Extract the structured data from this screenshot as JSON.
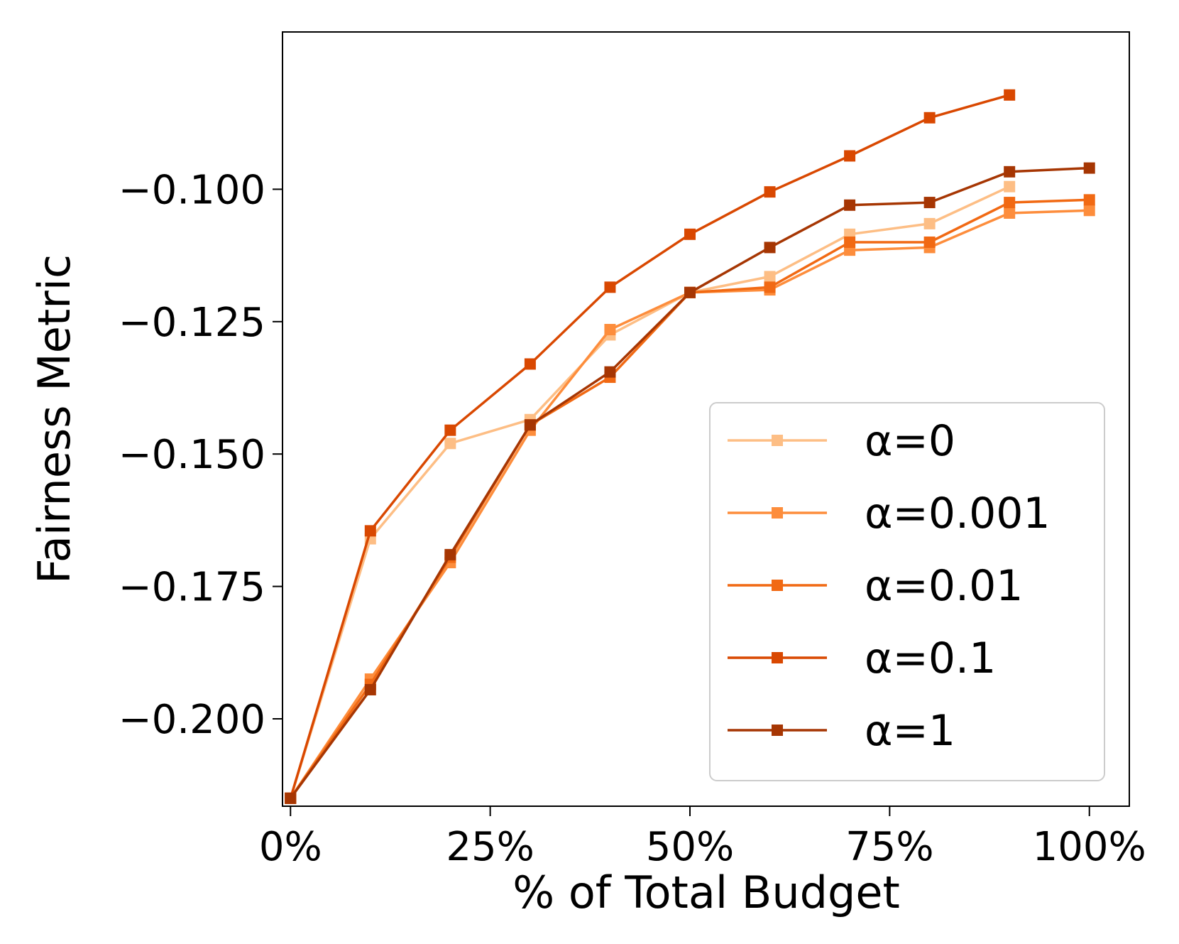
{
  "chart_data": {
    "type": "line",
    "title": "",
    "xlabel": "% of Total Budget",
    "ylabel": "Fairness Metric",
    "xlim": [
      -0.01,
      1.05
    ],
    "ylim": [
      -0.2165,
      -0.0703
    ],
    "x_ticks": [
      0,
      0.25,
      0.5,
      0.75,
      1.0
    ],
    "x_tick_labels": [
      "0%",
      "25%",
      "50%",
      "75%",
      "100%"
    ],
    "y_ticks": [
      -0.2,
      -0.175,
      -0.15,
      -0.125,
      -0.1
    ],
    "y_tick_labels": [
      "−0.200",
      "−0.175",
      "−0.150",
      "−0.125",
      "−0.100"
    ],
    "grid": false,
    "legend_position": "lower-right",
    "marker": "square",
    "series": [
      {
        "name": "α=0",
        "color": "#fdbe85",
        "x": [
          0,
          0.1,
          0.2,
          0.3,
          0.4,
          0.5,
          0.6,
          0.7,
          0.8,
          0.9,
          1.0
        ],
        "y": [
          -0.215,
          -0.166,
          -0.148,
          -0.1435,
          -0.1275,
          -0.1195,
          -0.1165,
          -0.1085,
          -0.1065,
          -0.0995,
          null
        ]
      },
      {
        "name": "α=0.001",
        "color": "#fd8d3c",
        "x": [
          0,
          0.1,
          0.2,
          0.3,
          0.4,
          0.5,
          0.6,
          0.7,
          0.8,
          0.9,
          1.0
        ],
        "y": [
          -0.215,
          -0.1925,
          -0.1705,
          -0.1455,
          -0.1265,
          -0.1195,
          -0.119,
          -0.1115,
          -0.111,
          -0.1045,
          -0.104
        ]
      },
      {
        "name": "α=0.01",
        "color": "#f16913",
        "x": [
          0,
          0.1,
          0.2,
          0.3,
          0.4,
          0.5,
          0.6,
          0.7,
          0.8,
          0.9,
          1.0
        ],
        "y": [
          -0.215,
          -0.1935,
          -0.1695,
          -0.1445,
          -0.1355,
          -0.1195,
          -0.1185,
          -0.11,
          -0.11,
          -0.1025,
          -0.102
        ]
      },
      {
        "name": "α=0.1",
        "color": "#d94801",
        "x": [
          0,
          0.1,
          0.2,
          0.3,
          0.4,
          0.5,
          0.6,
          0.7,
          0.8,
          0.9
        ],
        "y": [
          -0.215,
          -0.1645,
          -0.1455,
          -0.133,
          -0.1185,
          -0.1085,
          -0.1005,
          -0.0937,
          -0.0865,
          -0.0822
        ]
      },
      {
        "name": "α=1",
        "color": "#a63603",
        "x": [
          0,
          0.1,
          0.2,
          0.3,
          0.4,
          0.5,
          0.6,
          0.7,
          0.8,
          0.9,
          1.0
        ],
        "y": [
          -0.215,
          -0.1945,
          -0.169,
          -0.1445,
          -0.1345,
          -0.1195,
          -0.111,
          -0.103,
          -0.1025,
          -0.0967,
          -0.096
        ]
      }
    ]
  }
}
